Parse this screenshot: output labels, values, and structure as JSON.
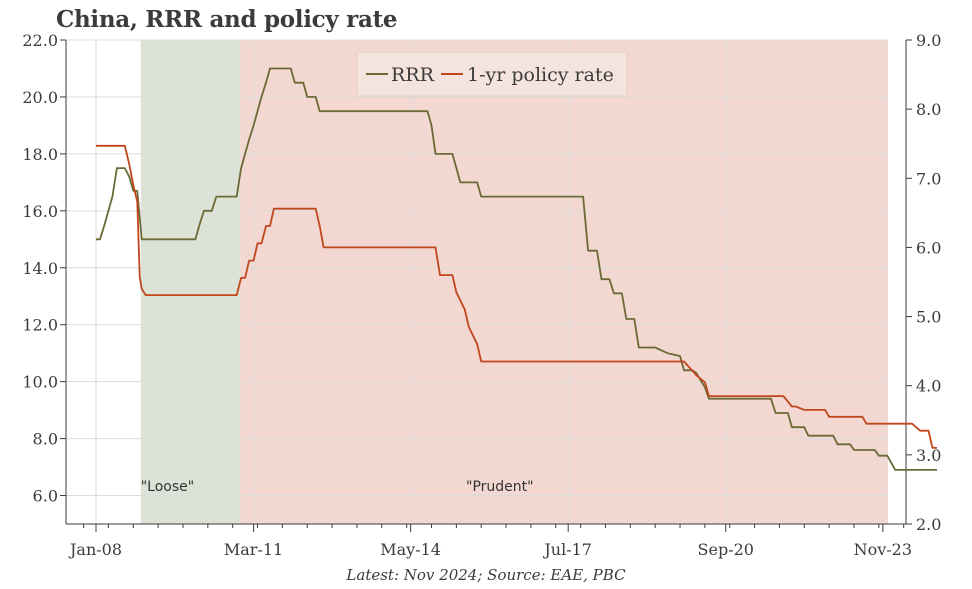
{
  "chart_data": {
    "type": "line",
    "title": "China, RRR and policy rate",
    "footnote": "Latest: Nov 2024; Source: EAE, PBC",
    "x_range": [
      2008.0,
      2024.9
    ],
    "x_ticks": [
      {
        "label": "Jan-08",
        "t": 2008.0
      },
      {
        "label": "Mar-11",
        "t": 2011.17
      },
      {
        "label": "May-14",
        "t": 2014.33
      },
      {
        "label": "Jul-17",
        "t": 2017.5
      },
      {
        "label": "Sep-20",
        "t": 2020.67
      },
      {
        "label": "Nov-23",
        "t": 2023.83
      }
    ],
    "y_left": {
      "range": [
        5.0,
        22.0
      ],
      "ticks": [
        "6.0",
        "8.0",
        "10.0",
        "12.0",
        "14.0",
        "16.0",
        "18.0",
        "20.0",
        "22.0"
      ]
    },
    "y_right": {
      "range": [
        2.0,
        9.0
      ],
      "ticks": [
        "2.0",
        "3.0",
        "4.0",
        "5.0",
        "6.0",
        "7.0",
        "8.0",
        "9.0"
      ]
    },
    "grid": true,
    "legend_position": "top-center",
    "regions": [
      {
        "label": "\"Loose\"",
        "start": 2008.9,
        "end": 2010.9,
        "color": "#dde2d6"
      },
      {
        "label": "\"Prudent\"",
        "start": 2010.9,
        "end": 2024.9,
        "color": "#f2d8d0"
      }
    ],
    "series": [
      {
        "name": "RRR",
        "axis": "left",
        "color": "#6b6a36",
        "points": [
          [
            2008.0,
            15.0
          ],
          [
            2008.08,
            15.0
          ],
          [
            2008.17,
            15.5
          ],
          [
            2008.25,
            16.0
          ],
          [
            2008.33,
            16.5
          ],
          [
            2008.42,
            17.5
          ],
          [
            2008.58,
            17.5
          ],
          [
            2008.67,
            17.2
          ],
          [
            2008.75,
            16.7
          ],
          [
            2008.83,
            16.7
          ],
          [
            2008.92,
            15.0
          ],
          [
            2009.0,
            15.0
          ],
          [
            2010.0,
            15.0
          ],
          [
            2010.08,
            15.5
          ],
          [
            2010.17,
            16.0
          ],
          [
            2010.25,
            16.0
          ],
          [
            2010.33,
            16.0
          ],
          [
            2010.42,
            16.5
          ],
          [
            2010.5,
            16.5
          ],
          [
            2010.83,
            16.5
          ],
          [
            2010.92,
            17.5
          ],
          [
            2011.0,
            18.0
          ],
          [
            2011.08,
            18.5
          ],
          [
            2011.17,
            19.0
          ],
          [
            2011.25,
            19.5
          ],
          [
            2011.33,
            20.0
          ],
          [
            2011.42,
            20.5
          ],
          [
            2011.5,
            21.0
          ],
          [
            2011.92,
            21.0
          ],
          [
            2012.0,
            20.5
          ],
          [
            2012.17,
            20.5
          ],
          [
            2012.25,
            20.0
          ],
          [
            2012.42,
            20.0
          ],
          [
            2012.5,
            19.5
          ],
          [
            2014.67,
            19.5
          ],
          [
            2014.75,
            19.0
          ],
          [
            2014.83,
            18.0
          ],
          [
            2015.17,
            18.0
          ],
          [
            2015.25,
            17.5
          ],
          [
            2015.33,
            17.0
          ],
          [
            2015.67,
            17.0
          ],
          [
            2015.75,
            16.5
          ],
          [
            2017.8,
            16.5
          ],
          [
            2017.9,
            14.6
          ],
          [
            2018.0,
            14.6
          ],
          [
            2018.08,
            14.6
          ],
          [
            2018.17,
            13.6
          ],
          [
            2018.33,
            13.6
          ],
          [
            2018.42,
            13.1
          ],
          [
            2018.58,
            13.1
          ],
          [
            2018.67,
            12.2
          ],
          [
            2018.83,
            12.2
          ],
          [
            2018.92,
            11.2
          ],
          [
            2019.25,
            11.2
          ],
          [
            2019.5,
            11.0
          ],
          [
            2019.75,
            10.9
          ],
          [
            2019.83,
            10.4
          ],
          [
            2020.0,
            10.4
          ],
          [
            2020.08,
            10.3
          ],
          [
            2020.25,
            9.8
          ],
          [
            2020.33,
            9.4
          ],
          [
            2021.58,
            9.4
          ],
          [
            2021.67,
            8.9
          ],
          [
            2021.92,
            8.9
          ],
          [
            2022.0,
            8.4
          ],
          [
            2022.25,
            8.4
          ],
          [
            2022.33,
            8.1
          ],
          [
            2022.83,
            8.1
          ],
          [
            2022.92,
            7.8
          ],
          [
            2023.17,
            7.8
          ],
          [
            2023.25,
            7.6
          ],
          [
            2023.67,
            7.6
          ],
          [
            2023.75,
            7.4
          ],
          [
            2023.92,
            7.4
          ],
          [
            2024.08,
            6.9
          ],
          [
            2024.92,
            6.9
          ]
        ]
      },
      {
        "name": "1-yr policy rate",
        "axis": "right",
        "color": "#c0461c",
        "points": [
          [
            2008.0,
            7.47
          ],
          [
            2008.58,
            7.47
          ],
          [
            2008.67,
            7.2
          ],
          [
            2008.75,
            6.9
          ],
          [
            2008.83,
            6.66
          ],
          [
            2008.88,
            5.58
          ],
          [
            2008.92,
            5.4
          ],
          [
            2009.0,
            5.31
          ],
          [
            2010.83,
            5.31
          ],
          [
            2010.92,
            5.56
          ],
          [
            2011.0,
            5.56
          ],
          [
            2011.08,
            5.81
          ],
          [
            2011.17,
            5.81
          ],
          [
            2011.25,
            6.06
          ],
          [
            2011.33,
            6.06
          ],
          [
            2011.42,
            6.31
          ],
          [
            2011.5,
            6.31
          ],
          [
            2011.58,
            6.56
          ],
          [
            2012.42,
            6.56
          ],
          [
            2012.5,
            6.31
          ],
          [
            2012.58,
            6.0
          ],
          [
            2014.83,
            6.0
          ],
          [
            2014.92,
            5.6
          ],
          [
            2015.17,
            5.6
          ],
          [
            2015.25,
            5.35
          ],
          [
            2015.42,
            5.1
          ],
          [
            2015.5,
            4.85
          ],
          [
            2015.67,
            4.6
          ],
          [
            2015.75,
            4.35
          ],
          [
            2019.83,
            4.35
          ],
          [
            2020.08,
            4.15
          ],
          [
            2020.25,
            4.05
          ],
          [
            2020.33,
            3.85
          ],
          [
            2021.83,
            3.85
          ],
          [
            2022.0,
            3.7
          ],
          [
            2022.08,
            3.7
          ],
          [
            2022.25,
            3.65
          ],
          [
            2022.33,
            3.65
          ],
          [
            2022.67,
            3.65
          ],
          [
            2022.75,
            3.55
          ],
          [
            2023.42,
            3.55
          ],
          [
            2023.5,
            3.45
          ],
          [
            2024.42,
            3.45
          ],
          [
            2024.58,
            3.35
          ],
          [
            2024.75,
            3.35
          ],
          [
            2024.83,
            3.1
          ],
          [
            2024.92,
            3.1
          ]
        ]
      }
    ]
  }
}
